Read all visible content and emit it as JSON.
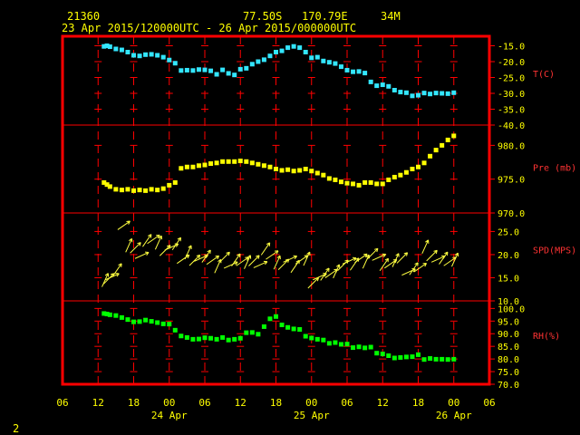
{
  "header": {
    "station": "21360",
    "lat": "77.50S",
    "lon": "170.79E",
    "elev": "34M",
    "range": "23 Apr 2015/120000UTC - 26 Apr 2015/000000UTC"
  },
  "page_number": "2",
  "colors": {
    "frame": "#ff0000",
    "grid": "#ff0000",
    "header_text": "#ffff00",
    "axis_text": "#ffff00",
    "temperature": "#33e6ff",
    "pressure": "#ffff00",
    "wind": "#ffff40",
    "humidity": "#00ff00"
  },
  "chart_data": {
    "type": "scatter",
    "x_axis": {
      "unit": "hours since 23 Apr 2015 00 UTC",
      "range": [
        6,
        78
      ],
      "ticks": [
        6,
        12,
        18,
        24,
        30,
        36,
        42,
        48,
        54,
        60,
        66,
        72,
        78
      ],
      "tick_labels": [
        "06",
        "12",
        "18",
        "00",
        "06",
        "12",
        "18",
        "00",
        "06",
        "12",
        "18",
        "00",
        "06"
      ],
      "date_labels": [
        {
          "x": 24,
          "label": "24 Apr"
        },
        {
          "x": 48,
          "label": "25 Apr"
        },
        {
          "x": 72,
          "label": "26 Apr"
        }
      ]
    },
    "panels": [
      {
        "name": "T(C)",
        "marker": "square",
        "color": "#33e6ff",
        "ylim": [
          -40,
          -12
        ],
        "ticks": [
          -15,
          -20,
          -25,
          -30,
          -35,
          -40
        ],
        "tick_labels": [
          "-15.0",
          "-20.0",
          "-25.0",
          "-30.0",
          "-35.0",
          "-40.0"
        ],
        "x": [
          13,
          13.5,
          14,
          15,
          16,
          17,
          18,
          19,
          20,
          21,
          22,
          23,
          24,
          25,
          26,
          27,
          28,
          29,
          30,
          31,
          32,
          33,
          34,
          35,
          36,
          37,
          38,
          39,
          40,
          41,
          42,
          43,
          44,
          45,
          46,
          47,
          48,
          49,
          50,
          51,
          52,
          53,
          54,
          55,
          56,
          57,
          58,
          59,
          60,
          61,
          62,
          63,
          64,
          65,
          66,
          67,
          68,
          69,
          70,
          71,
          72
        ],
        "y": [
          -15.2,
          -15,
          -15.3,
          -16,
          -16.3,
          -17,
          -18,
          -18.2,
          -17.8,
          -17.7,
          -18,
          -18.6,
          -19.5,
          -20.5,
          -22.8,
          -22.7,
          -22.8,
          -22.5,
          -22.6,
          -22.9,
          -24,
          -22.6,
          -23.7,
          -24.2,
          -22.4,
          -22.1,
          -20.8,
          -20,
          -19.4,
          -18.2,
          -17,
          -16.6,
          -15.6,
          -15.2,
          -15.6,
          -17,
          -18.8,
          -18.6,
          -19.8,
          -20.2,
          -20.6,
          -21.6,
          -22.7,
          -23.2,
          -23.1,
          -23.6,
          -26.4,
          -27.6,
          -27.3,
          -27.8,
          -29,
          -29.6,
          -29.8,
          -30.8,
          -30.6,
          -29.9,
          -30.2,
          -29.9,
          -30,
          -30.1,
          -29.8
        ]
      },
      {
        "name": "Pre (mb)",
        "marker": "square",
        "color": "#ffff00",
        "ylim": [
          970,
          983
        ],
        "ticks": [
          970,
          975,
          980
        ],
        "tick_labels": [
          "970.0",
          "975.0",
          "980.0"
        ],
        "x": [
          13,
          13.5,
          14,
          15,
          16,
          17,
          18,
          19,
          20,
          21,
          22,
          23,
          24,
          25,
          26,
          27,
          28,
          29,
          30,
          31,
          32,
          33,
          34,
          35,
          36,
          37,
          38,
          39,
          40,
          41,
          42,
          43,
          44,
          45,
          46,
          47,
          48,
          49,
          50,
          51,
          52,
          53,
          54,
          55,
          56,
          57,
          58,
          59,
          60,
          61,
          62,
          63,
          64,
          65,
          66,
          67,
          68,
          69,
          70,
          71,
          72
        ],
        "y": [
          974.5,
          974.2,
          973.9,
          973.5,
          973.4,
          973.5,
          973.3,
          973.4,
          973.3,
          973.5,
          973.4,
          973.6,
          974.1,
          974.5,
          976.6,
          976.8,
          976.8,
          977,
          977.1,
          977.3,
          977.4,
          977.6,
          977.6,
          977.6,
          977.7,
          977.6,
          977.4,
          977.2,
          977,
          976.8,
          976.5,
          976.3,
          976.4,
          976.2,
          976.3,
          976.5,
          976.2,
          975.9,
          975.6,
          975.1,
          974.9,
          974.6,
          974.4,
          974.3,
          974.1,
          974.5,
          974.5,
          974.3,
          974.3,
          974.9,
          975.3,
          975.6,
          976,
          976.5,
          976.8,
          977.4,
          978.4,
          979.3,
          980,
          980.8,
          981.4
        ]
      },
      {
        "name": "SPD(MPS)",
        "marker": "arrow",
        "color": "#ffff40",
        "ylim": [
          10,
          29
        ],
        "ticks": [
          10,
          15,
          20,
          25
        ],
        "tick_labels": [
          "10.0",
          "15.0",
          "20.0",
          "25.0"
        ],
        "x": [
          13,
          13.5,
          14,
          15,
          16,
          17,
          18,
          19,
          20,
          21,
          22,
          23,
          24,
          25,
          26,
          27,
          28,
          29,
          30,
          31,
          32,
          33,
          34,
          35,
          36,
          37,
          38,
          39,
          40,
          41,
          42,
          43,
          44,
          45,
          46,
          47,
          48,
          49,
          50,
          51,
          52,
          53,
          54,
          55,
          56,
          57,
          58,
          59,
          60,
          61,
          62,
          63,
          64,
          65,
          66,
          67,
          68,
          69,
          70,
          71,
          72
        ],
        "y": [
          14,
          14.4,
          15,
          16.3,
          26,
          21.5,
          21.1,
          19.6,
          22.6,
          23,
          22.1,
          20.5,
          21.4,
          21.9,
          18.7,
          20,
          18.4,
          19,
          19.2,
          18.5,
          17,
          19,
          17.5,
          18.4,
          18.2,
          17.9,
          18.3,
          17.6,
          20.8,
          19.6,
          17.8,
          17.5,
          18.8,
          17,
          18.6,
          18.6,
          13.5,
          15,
          15.3,
          15.6,
          15.9,
          17.3,
          18.4,
          17.5,
          18.9,
          18,
          19.8,
          19.2,
          17.4,
          17.7,
          18.3,
          18.9,
          16,
          16.5,
          16.9,
          21.2,
          19.4,
          18.8,
          18.8,
          18.2,
          18.4
        ]
      },
      {
        "name": "RH(%)",
        "marker": "square",
        "color": "#00ff00",
        "ylim": [
          70,
          103
        ],
        "ticks": [
          70,
          75,
          80,
          85,
          90,
          95,
          100
        ],
        "tick_labels": [
          "70.0",
          "75.0",
          "80.0",
          "85.0",
          "90.0",
          "95.0",
          "100.0"
        ],
        "x": [
          13,
          13.5,
          14,
          15,
          16,
          17,
          18,
          19,
          20,
          21,
          22,
          23,
          24,
          25,
          26,
          27,
          28,
          29,
          30,
          31,
          32,
          33,
          34,
          35,
          36,
          37,
          38,
          39,
          40,
          41,
          42,
          43,
          44,
          45,
          46,
          47,
          48,
          49,
          50,
          51,
          52,
          53,
          54,
          55,
          56,
          57,
          58,
          59,
          60,
          61,
          62,
          63,
          64,
          65,
          66,
          67,
          68,
          69,
          70,
          71,
          72
        ],
        "y": [
          98,
          97.8,
          97.5,
          97.2,
          96.4,
          95.6,
          94.7,
          94.8,
          95.4,
          94.9,
          94.4,
          93.9,
          93.8,
          91.4,
          89.1,
          88.5,
          87.8,
          87.9,
          88.4,
          88.2,
          87.8,
          88.5,
          87.5,
          87.8,
          88.2,
          90.4,
          90.5,
          89.8,
          92.8,
          95.9,
          96.8,
          93.5,
          92.5,
          91.9,
          91.7,
          89,
          88.3,
          87.8,
          87.5,
          86.2,
          86.5,
          85.8,
          85.9,
          84.5,
          84.8,
          84.4,
          84.7,
          82.3,
          82,
          81.3,
          80.4,
          80.6,
          80.8,
          80.9,
          81.7,
          79.8,
          80.2,
          79.9,
          79.9,
          79.8,
          79.9
        ]
      }
    ]
  }
}
